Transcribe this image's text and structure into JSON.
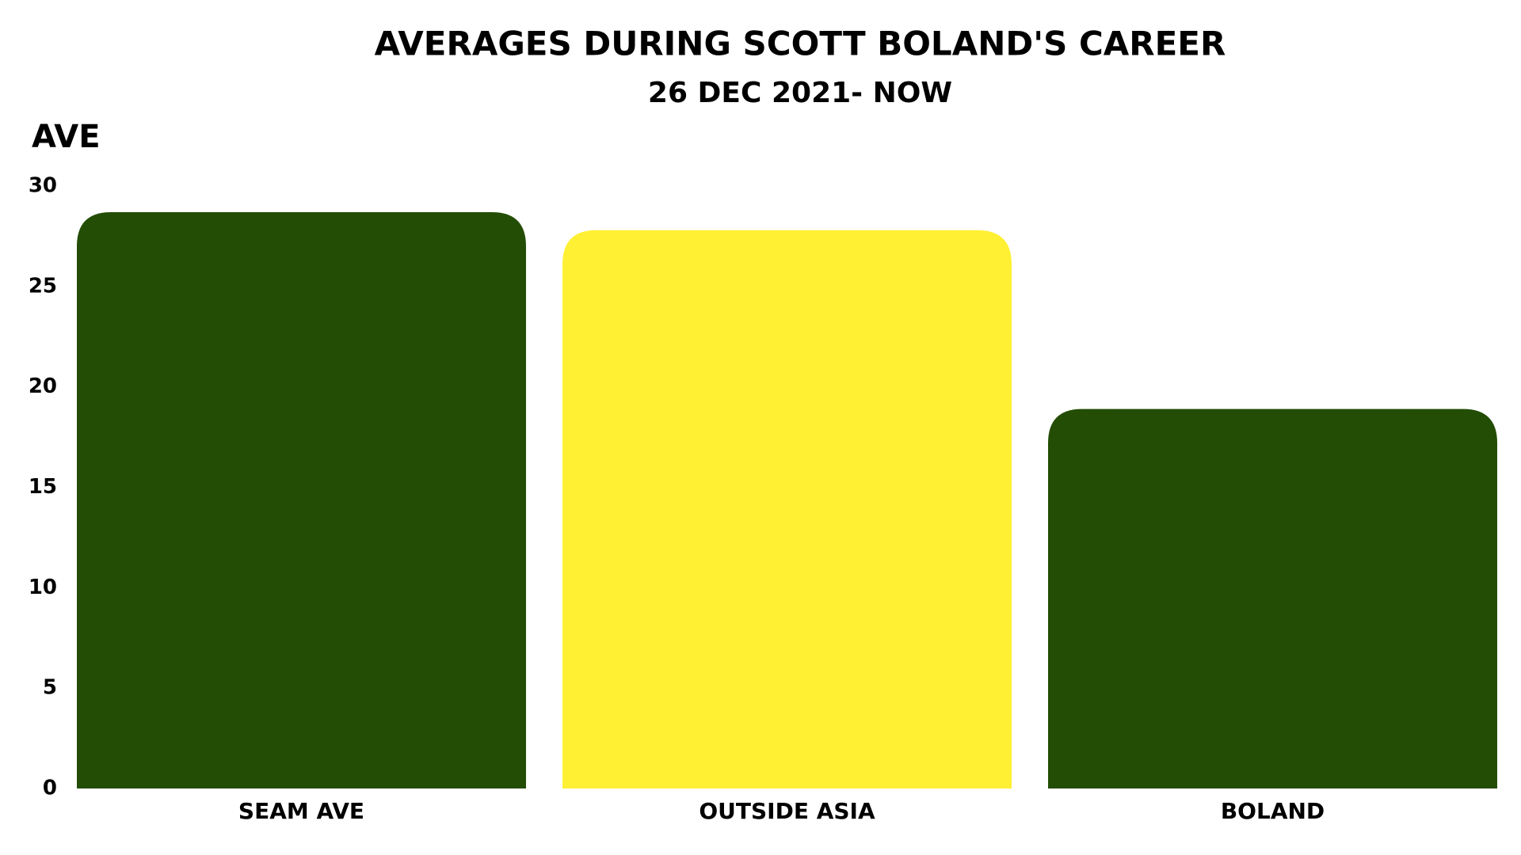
{
  "chart_data": {
    "type": "bar",
    "title": "AVERAGES DURING SCOTT BOLAND'S CAREER",
    "subtitle": "26 DEC 2021- NOW",
    "y_label": "AVE",
    "categories": [
      "SEAM AVE",
      "OUTSIDE ASIA",
      "BOLAND"
    ],
    "values": [
      28.7,
      27.8,
      18.9
    ],
    "colors": [
      "#234d05",
      "#fff034",
      "#234d05"
    ],
    "ylim": [
      0,
      30
    ],
    "yticks": [
      0,
      5,
      10,
      15,
      20,
      25,
      30
    ],
    "grid": false
  }
}
